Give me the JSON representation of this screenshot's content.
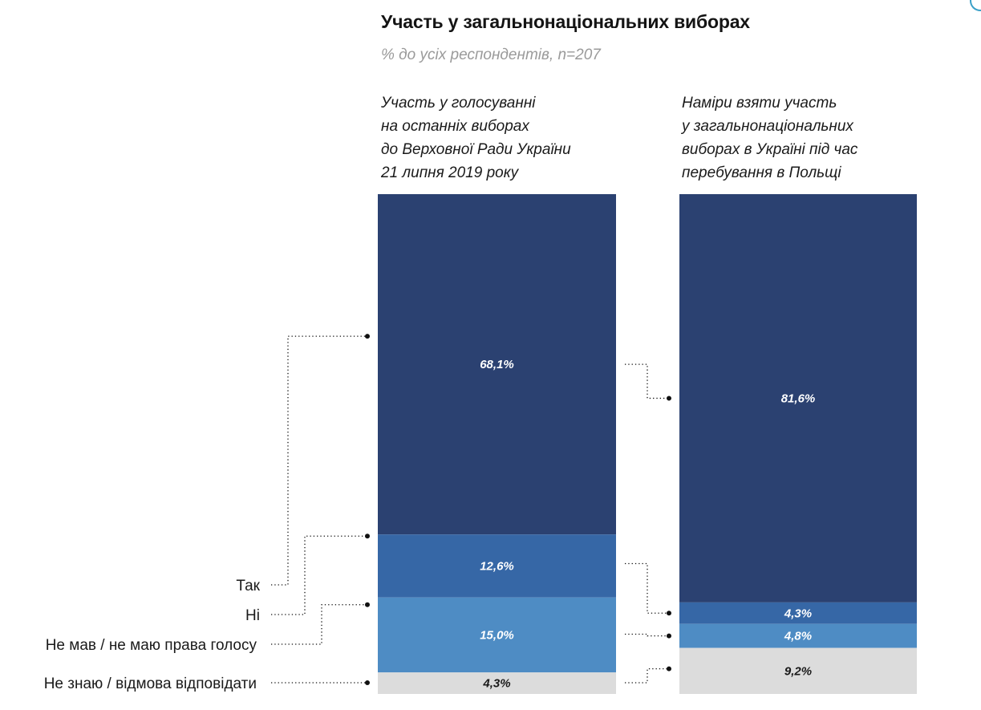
{
  "chart_data": {
    "type": "bar",
    "stacked": true,
    "title": "Участь у загальнонаціональних виборах",
    "subtitle": "% до усіх респондентів, n=207",
    "columns": [
      {
        "name": "Участь у голосуванні на останніх виборах до Верховної Ради України 21 липня 2019 року",
        "header_lines": [
          "Участь у голосуванні",
          "на останніх виборах",
          "до Верховної Ради України",
          "21 липня 2019 року"
        ]
      },
      {
        "name": "Наміри взяти участь у загальнонаціональних виборах в Україні під час перебування в Польщі",
        "header_lines": [
          "Наміри взяти участь",
          "у загальнонаціональних",
          "виборах в Україні під час",
          "перебування в Польщі"
        ]
      }
    ],
    "series": [
      {
        "name": "Так",
        "color": "#2b4171",
        "label_color": "#ffffff",
        "values": [
          68.1,
          81.6
        ],
        "labels": [
          "68,1%",
          "81,6%"
        ]
      },
      {
        "name": "Ні",
        "color": "#3667a6",
        "label_color": "#ffffff",
        "values": [
          12.6,
          4.3
        ],
        "labels": [
          "12,6%",
          "4,3%"
        ]
      },
      {
        "name": "Не мав / не маю права голосу",
        "color": "#4e8cc4",
        "label_color": "#ffffff",
        "values": [
          15.0,
          4.8
        ],
        "labels": [
          "15,0%",
          "4,8%"
        ]
      },
      {
        "name": "Не знаю / відмова відповідати",
        "color": "#dcdcdc",
        "label_color": "#1a1a1a",
        "values": [
          4.3,
          9.2
        ],
        "labels": [
          "4,3%",
          "9,2%"
        ]
      }
    ],
    "legend": [
      "Так",
      "Ні",
      "Не мав / не маю права голосу",
      "Не знаю / відмова відповідати"
    ],
    "ylim": [
      0,
      100
    ]
  }
}
